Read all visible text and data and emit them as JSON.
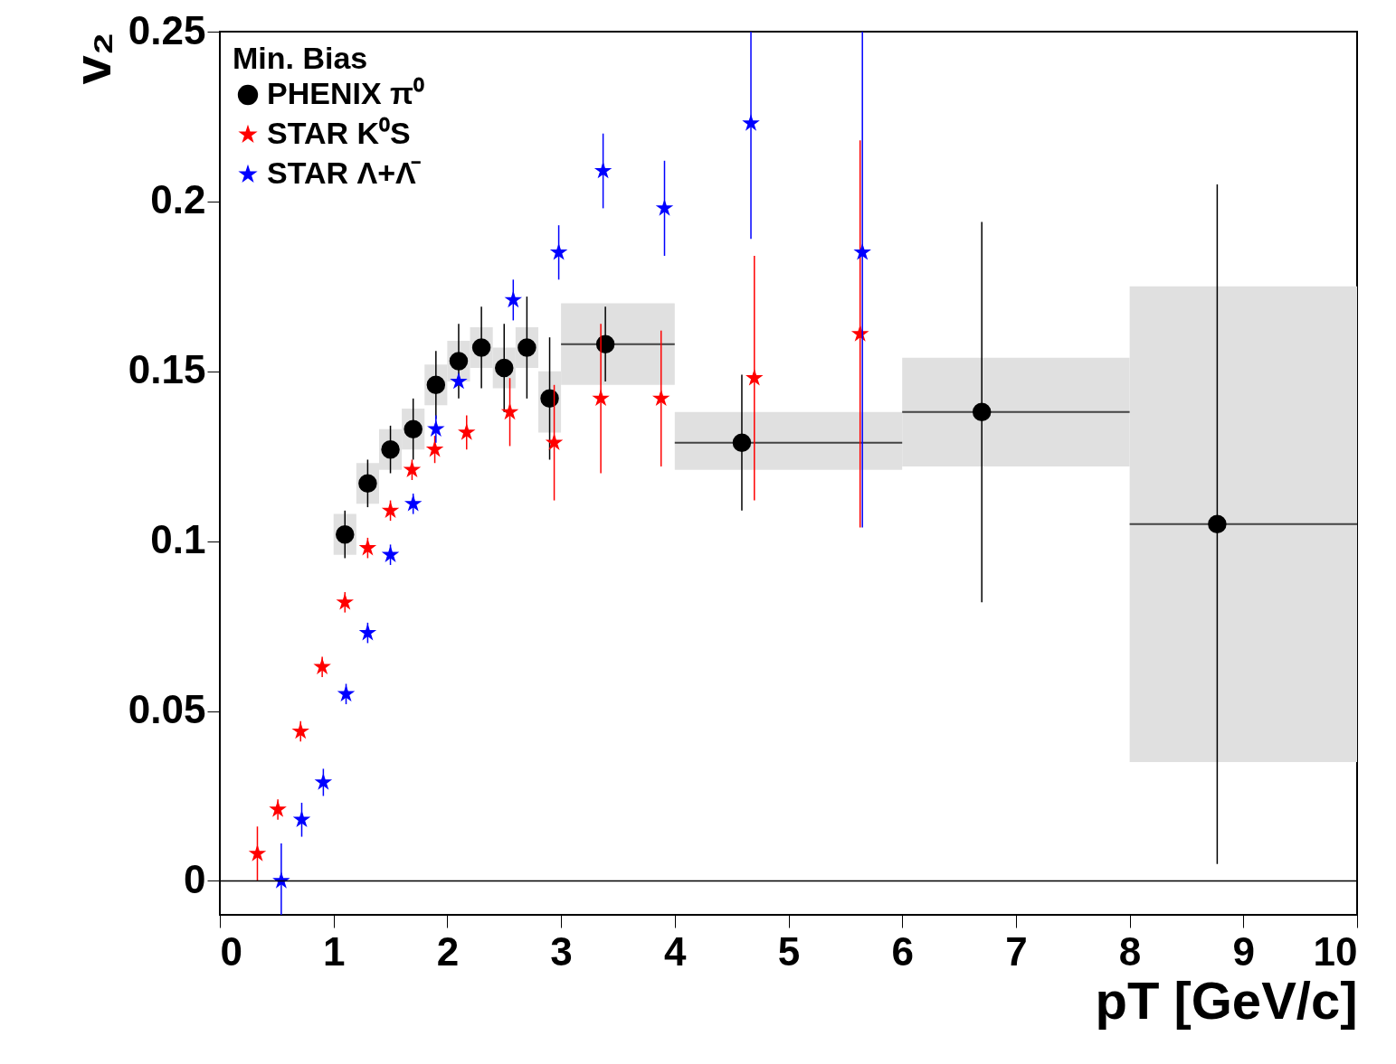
{
  "chart_data": {
    "type": "scatter",
    "xlabel": "pT [GeV/c]",
    "ylabel": "v₂",
    "legend_title": "Min. Bias",
    "xlim": [
      0,
      10
    ],
    "ylim": [
      -0.01,
      0.25
    ],
    "xticks": [
      0,
      1,
      2,
      3,
      4,
      5,
      6,
      7,
      8,
      9,
      10
    ],
    "yticks": [
      0,
      0.05,
      0.1,
      0.15,
      0.2,
      0.25
    ],
    "grid": false,
    "legend": "top left",
    "ref_lines": [
      {
        "axis": "y",
        "value": 0,
        "color": "#000000"
      }
    ],
    "series": [
      {
        "type": "bar",
        "color": "#e0e0e0",
        "x": [
          1.1,
          1.3,
          1.5,
          1.7,
          1.9,
          2.1,
          2.3,
          2.5,
          2.7,
          2.9,
          3.5,
          5,
          7,
          9
        ],
        "base": [
          0.096,
          0.111,
          0.121,
          0.127,
          0.14,
          0.147,
          0.151,
          0.145,
          0.151,
          0.132,
          0.146,
          0.121,
          0.122,
          0.035
        ],
        "values": [
          0.012,
          0.012,
          0.012,
          0.012,
          0.012,
          0.012,
          0.012,
          0.012,
          0.012,
          0.018,
          0.024,
          0.017,
          0.032,
          0.14
        ]
      },
      {
        "name": "PHENIX π⁰",
        "color": "#000000",
        "marker": "circle",
        "x": [
          1.1,
          1.3,
          1.5,
          1.7,
          1.9,
          2.1,
          2.3,
          2.5,
          2.7,
          2.9,
          3.39,
          4.59,
          6.7,
          8.77
        ],
        "values": [
          0.102,
          0.117,
          0.127,
          0.133,
          0.146,
          0.153,
          0.157,
          0.151,
          0.157,
          0.142,
          0.158,
          0.129,
          0.138,
          0.105
        ],
        "errors": [
          0.007,
          0.007,
          0.007,
          0.009,
          0.01,
          0.011,
          0.012,
          0.013,
          0.015,
          0.018,
          0.011,
          0.02,
          0.056,
          0.1
        ],
        "xerrors": [
          null,
          null,
          null,
          null,
          null,
          null,
          null,
          null,
          null,
          null,
          [
            3,
            4
          ],
          [
            4,
            6
          ],
          [
            6,
            8
          ],
          [
            8,
            10
          ]
        ]
      },
      {
        "name": "STAR K⁰S",
        "color": "#ff0000",
        "marker": "star",
        "x": [
          0.33,
          0.51,
          0.71,
          0.9,
          1.1,
          1.3,
          1.5,
          1.69,
          1.89,
          2.17,
          2.55,
          2.94,
          3.35,
          3.88,
          4.7,
          5.63
        ],
        "values": [
          0.008,
          0.021,
          0.044,
          0.063,
          0.082,
          0.098,
          0.109,
          0.121,
          0.127,
          0.132,
          0.138,
          0.129,
          0.142,
          0.142,
          0.148,
          0.161
        ],
        "errors": [
          0.008,
          0.003,
          0.003,
          0.003,
          0.003,
          0.003,
          0.003,
          0.003,
          0.004,
          0.005,
          0.01,
          0.017,
          0.022,
          0.02,
          0.036,
          0.057
        ]
      },
      {
        "name": "STAR Λ+Λ̄",
        "color": "#0000ff",
        "marker": "star",
        "x": [
          0.54,
          0.72,
          0.91,
          1.11,
          1.3,
          1.5,
          1.7,
          1.9,
          2.1,
          2.58,
          2.98,
          3.37,
          3.91,
          4.67,
          5.65
        ],
        "values": [
          0.0,
          0.018,
          0.029,
          0.055,
          0.073,
          0.096,
          0.111,
          0.133,
          0.147,
          0.171,
          0.185,
          0.209,
          0.198,
          0.223,
          0.185
        ],
        "errors": [
          [
            -0.01,
            0.011
          ],
          0.005,
          0.004,
          0.003,
          0.003,
          0.003,
          0.003,
          0.004,
          null,
          0.006,
          0.008,
          0.011,
          0.014,
          [
            0.189,
            0.25
          ],
          [
            0.104,
            0.25
          ]
        ]
      }
    ]
  }
}
